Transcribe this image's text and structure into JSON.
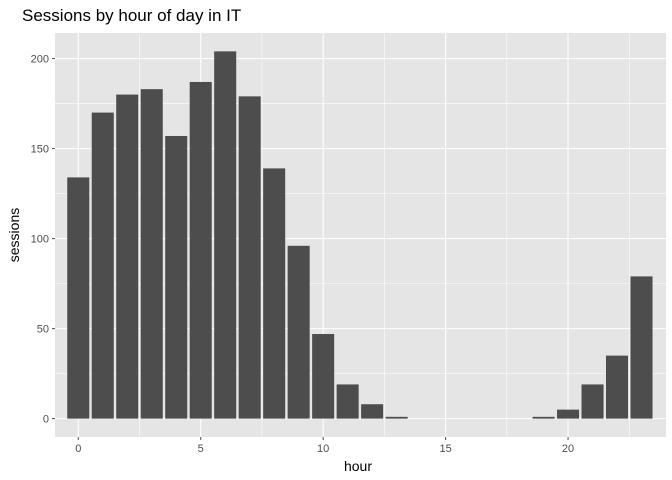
{
  "chart_data": {
    "type": "bar",
    "title": "Sessions by hour of day in IT",
    "xlabel": "hour",
    "ylabel": "sessions",
    "x": [
      0,
      1,
      2,
      3,
      4,
      5,
      6,
      7,
      8,
      9,
      10,
      11,
      12,
      13,
      14,
      15,
      16,
      17,
      18,
      19,
      20,
      21,
      22,
      23
    ],
    "values": [
      134,
      170,
      180,
      183,
      157,
      187,
      204,
      179,
      139,
      96,
      47,
      19,
      8,
      1,
      0,
      0,
      0,
      0,
      0,
      1,
      5,
      19,
      35,
      79
    ],
    "xlim": [
      -0.95,
      24.0
    ],
    "ylim": [
      -10.2,
      214.2
    ],
    "xticks": [
      0,
      5,
      10,
      15,
      20
    ],
    "yticks": [
      0,
      50,
      100,
      150,
      200
    ],
    "xtick_labels": [
      "0",
      "5",
      "10",
      "15",
      "20"
    ],
    "ytick_labels": [
      "0",
      "50",
      "100",
      "150",
      "200"
    ],
    "grid": true,
    "colors": {
      "panel": "#e5e5e5",
      "grid": "#ffffff",
      "bar": "#4d4d4d",
      "tick": "#4d4d4d"
    }
  }
}
